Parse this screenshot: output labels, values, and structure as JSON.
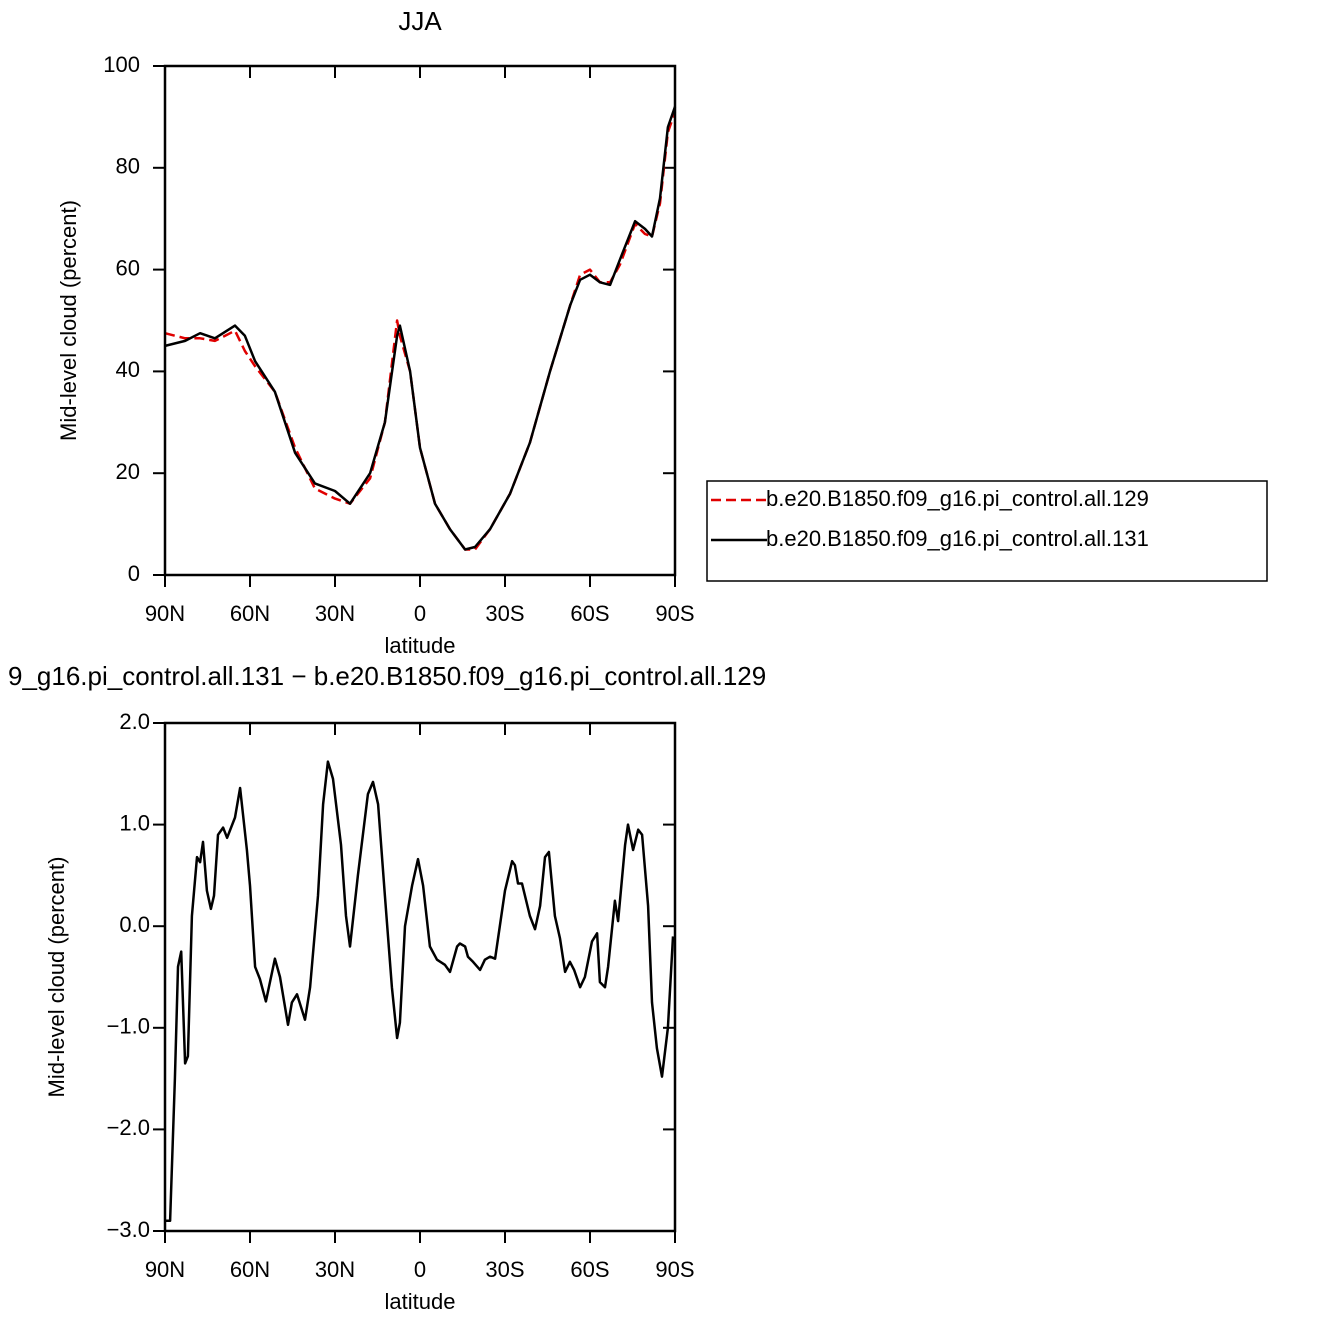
{
  "chart_data": [
    {
      "type": "line",
      "title": "JJA",
      "xlabel": "latitude",
      "ylabel": "Mid-level cloud (percent)",
      "xlim": [
        90,
        -90
      ],
      "xticks": [
        {
          "value": 90,
          "label": "90N"
        },
        {
          "value": 60,
          "label": "60N"
        },
        {
          "value": 30,
          "label": "30N"
        },
        0,
        {
          "value": -30,
          "label": "30S"
        },
        {
          "value": -60,
          "label": "60S"
        },
        {
          "value": -90,
          "label": "90S"
        }
      ],
      "ylim": [
        0,
        100
      ],
      "yticks": [
        0,
        20,
        40,
        60,
        80,
        100
      ],
      "legend": "right",
      "x": [
        90,
        82.9,
        77.6,
        72.4,
        65.3,
        61.8,
        58.2,
        51.2,
        44.1,
        37.1,
        30,
        24.7,
        17.6,
        12.4,
        8.1,
        7.1,
        3.5,
        0,
        -5.3,
        -10.6,
        -15.9,
        -19.4,
        -24.7,
        -31.8,
        -38.8,
        -45.9,
        -53,
        -56.5,
        -60,
        -63.5,
        -67.1,
        -70.6,
        -75.9,
        -79.4,
        -81.9,
        -84.7,
        -87.5,
        -90
      ],
      "series": [
        {
          "name": "b.e20.B1850.f09_g16.pi_control.all.129",
          "color": "#e00000",
          "dashed": true,
          "values": [
            47.5,
            46.5,
            46.5,
            46,
            48,
            44,
            41,
            36,
            25,
            17,
            15,
            14,
            19,
            30,
            50,
            47,
            40,
            25,
            14,
            9,
            5,
            5,
            9,
            16,
            26,
            40,
            53,
            59,
            60,
            57.5,
            57.5,
            61,
            69,
            67,
            66.5,
            73,
            87,
            91
          ]
        },
        {
          "name": "b.e20.B1850.f09_g16.pi_control.all.131",
          "color": "#000000",
          "dashed": false,
          "values": [
            45,
            46,
            47.5,
            46.5,
            49,
            47,
            42,
            36,
            24,
            18,
            16.5,
            14,
            20,
            30,
            47,
            49,
            40,
            25,
            14,
            9,
            5,
            5.5,
            9,
            16,
            26,
            40,
            53,
            58,
            59,
            57.5,
            57,
            62,
            69.5,
            68,
            66.5,
            74,
            88,
            92
          ]
        }
      ]
    },
    {
      "type": "line",
      "title": "9_g16.pi_control.all.131 − b.e20.B1850.f09_g16.pi_control.all.129",
      "xlabel": "latitude",
      "ylabel": "Mid-level cloud (percent)",
      "xlim": [
        90,
        -90
      ],
      "xticks": [
        {
          "value": 90,
          "label": "90N"
        },
        {
          "value": 60,
          "label": "60N"
        },
        {
          "value": 30,
          "label": "30N"
        },
        0,
        {
          "value": -30,
          "label": "30S"
        },
        {
          "value": -60,
          "label": "60S"
        },
        {
          "value": -90,
          "label": "90S"
        }
      ],
      "ylim": [
        -3,
        2
      ],
      "yticks": [
        {
          "value": -3,
          "label": "−3.0"
        },
        {
          "value": -2,
          "label": "−2.0"
        },
        {
          "value": -1,
          "label": "−1.0"
        },
        {
          "value": 0,
          "label": "0.0"
        },
        {
          "value": 1,
          "label": "1.0"
        },
        {
          "value": 2,
          "label": "2.0"
        }
      ],
      "color": "#000000",
      "x": [
        90,
        88.2,
        86.5,
        85.4,
        84.3,
        82.9,
        81.9,
        80.5,
        78.7,
        77.6,
        76.6,
        75.2,
        73.8,
        72.7,
        71.3,
        69.5,
        68.1,
        65.3,
        63.5,
        61.1,
        60,
        58.2,
        56.5,
        54.4,
        51.2,
        49.4,
        46.6,
        45.2,
        43.4,
        40.6,
        38.8,
        36,
        34.2,
        32.5,
        30.7,
        27.9,
        26.1,
        24.7,
        21.9,
        18.4,
        16.6,
        14.8,
        12.4,
        9.9,
        8.1,
        7.1,
        5.3,
        2.8,
        0.7,
        -1.1,
        -3.5,
        -6,
        -8.8,
        -10.6,
        -13.1,
        -14.1,
        -15.9,
        -16.9,
        -18.7,
        -21.2,
        -22.9,
        -24.7,
        -26.5,
        -30,
        -32.5,
        -33.5,
        -34.6,
        -36,
        -38.8,
        -40.6,
        -42.4,
        -44.1,
        -45.5,
        -47.6,
        -49.4,
        -51.2,
        -52.9,
        -54.4,
        -56.5,
        -58.2,
        -60.7,
        -62.5,
        -63.5,
        -65.3,
        -66.4,
        -68.8,
        -69.9,
        -72.4,
        -73.4,
        -75.2,
        -77,
        -78.4,
        -80.5,
        -81.9,
        -83.6,
        -85.4,
        -87.5,
        -89.3
      ],
      "values": [
        -2.9,
        -2.9,
        -1.5,
        -0.4,
        -0.25,
        -1.35,
        -1.28,
        0.1,
        0.68,
        0.63,
        0.83,
        0.35,
        0.17,
        0.3,
        0.9,
        0.97,
        0.87,
        1.07,
        1.36,
        0.75,
        0.4,
        -0.4,
        -0.52,
        -0.74,
        -0.32,
        -0.5,
        -0.97,
        -0.75,
        -0.67,
        -0.92,
        -0.6,
        0.3,
        1.2,
        1.62,
        1.45,
        0.8,
        0.1,
        -0.2,
        0.5,
        1.3,
        1.42,
        1.2,
        0.3,
        -0.6,
        -1.1,
        -0.95,
        0,
        0.4,
        0.66,
        0.4,
        -0.2,
        -0.33,
        -0.38,
        -0.45,
        -0.2,
        -0.17,
        -0.2,
        -0.3,
        -0.35,
        -0.43,
        -0.33,
        -0.3,
        -0.32,
        0.35,
        0.64,
        0.6,
        0.42,
        0.42,
        0.1,
        -0.03,
        0.2,
        0.68,
        0.73,
        0.1,
        -0.12,
        -0.45,
        -0.35,
        -0.43,
        -0.6,
        -0.5,
        -0.15,
        -0.07,
        -0.55,
        -0.6,
        -0.4,
        0.25,
        0.05,
        0.8,
        1,
        0.75,
        0.95,
        0.9,
        0.2,
        -0.75,
        -1.2,
        -1.48,
        -1,
        -0.1
      ]
    }
  ]
}
